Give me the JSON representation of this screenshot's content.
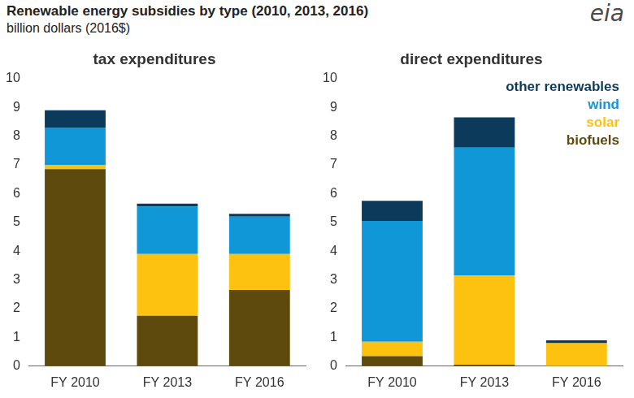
{
  "title": "Renewable energy subsidies by type (2010, 2013, 2016)",
  "subtitle": "billion dollars (2016$)",
  "logo": "eia",
  "chart_data": [
    {
      "type": "bar",
      "title": "tax expenditures",
      "stacked": true,
      "grid": false,
      "categories": [
        "FY 2010",
        "FY 2013",
        "FY 2016"
      ],
      "ylim": [
        0,
        10
      ],
      "yticks": [
        0,
        1,
        2,
        3,
        4,
        5,
        6,
        7,
        8,
        9,
        10
      ],
      "series": [
        {
          "name": "biofuels",
          "color": "#5e4a0c",
          "values": [
            6.85,
            1.75,
            2.65
          ]
        },
        {
          "name": "solar",
          "color": "#fdc20f",
          "values": [
            0.15,
            2.15,
            1.25
          ]
        },
        {
          "name": "wind",
          "color": "#1097d8",
          "values": [
            1.3,
            1.65,
            1.3
          ]
        },
        {
          "name": "other renewables",
          "color": "#0c3a5b",
          "values": [
            0.6,
            0.1,
            0.1
          ]
        }
      ]
    },
    {
      "type": "bar",
      "title": "direct expenditures",
      "stacked": true,
      "grid": false,
      "legend": "top-right",
      "categories": [
        "FY 2010",
        "FY 2013",
        "FY 2016"
      ],
      "ylim": [
        0,
        10
      ],
      "yticks": [
        0,
        1,
        2,
        3,
        4,
        5,
        6,
        7,
        8,
        9,
        10
      ],
      "series": [
        {
          "name": "biofuels",
          "color": "#5e4a0c",
          "values": [
            0.35,
            0.05,
            0
          ]
        },
        {
          "name": "solar",
          "color": "#fdc20f",
          "values": [
            0.5,
            3.1,
            0.8
          ]
        },
        {
          "name": "wind",
          "color": "#1097d8",
          "values": [
            4.2,
            4.45,
            0
          ]
        },
        {
          "name": "other renewables",
          "color": "#0c3a5b",
          "values": [
            0.7,
            1.05,
            0.1
          ]
        }
      ]
    }
  ]
}
